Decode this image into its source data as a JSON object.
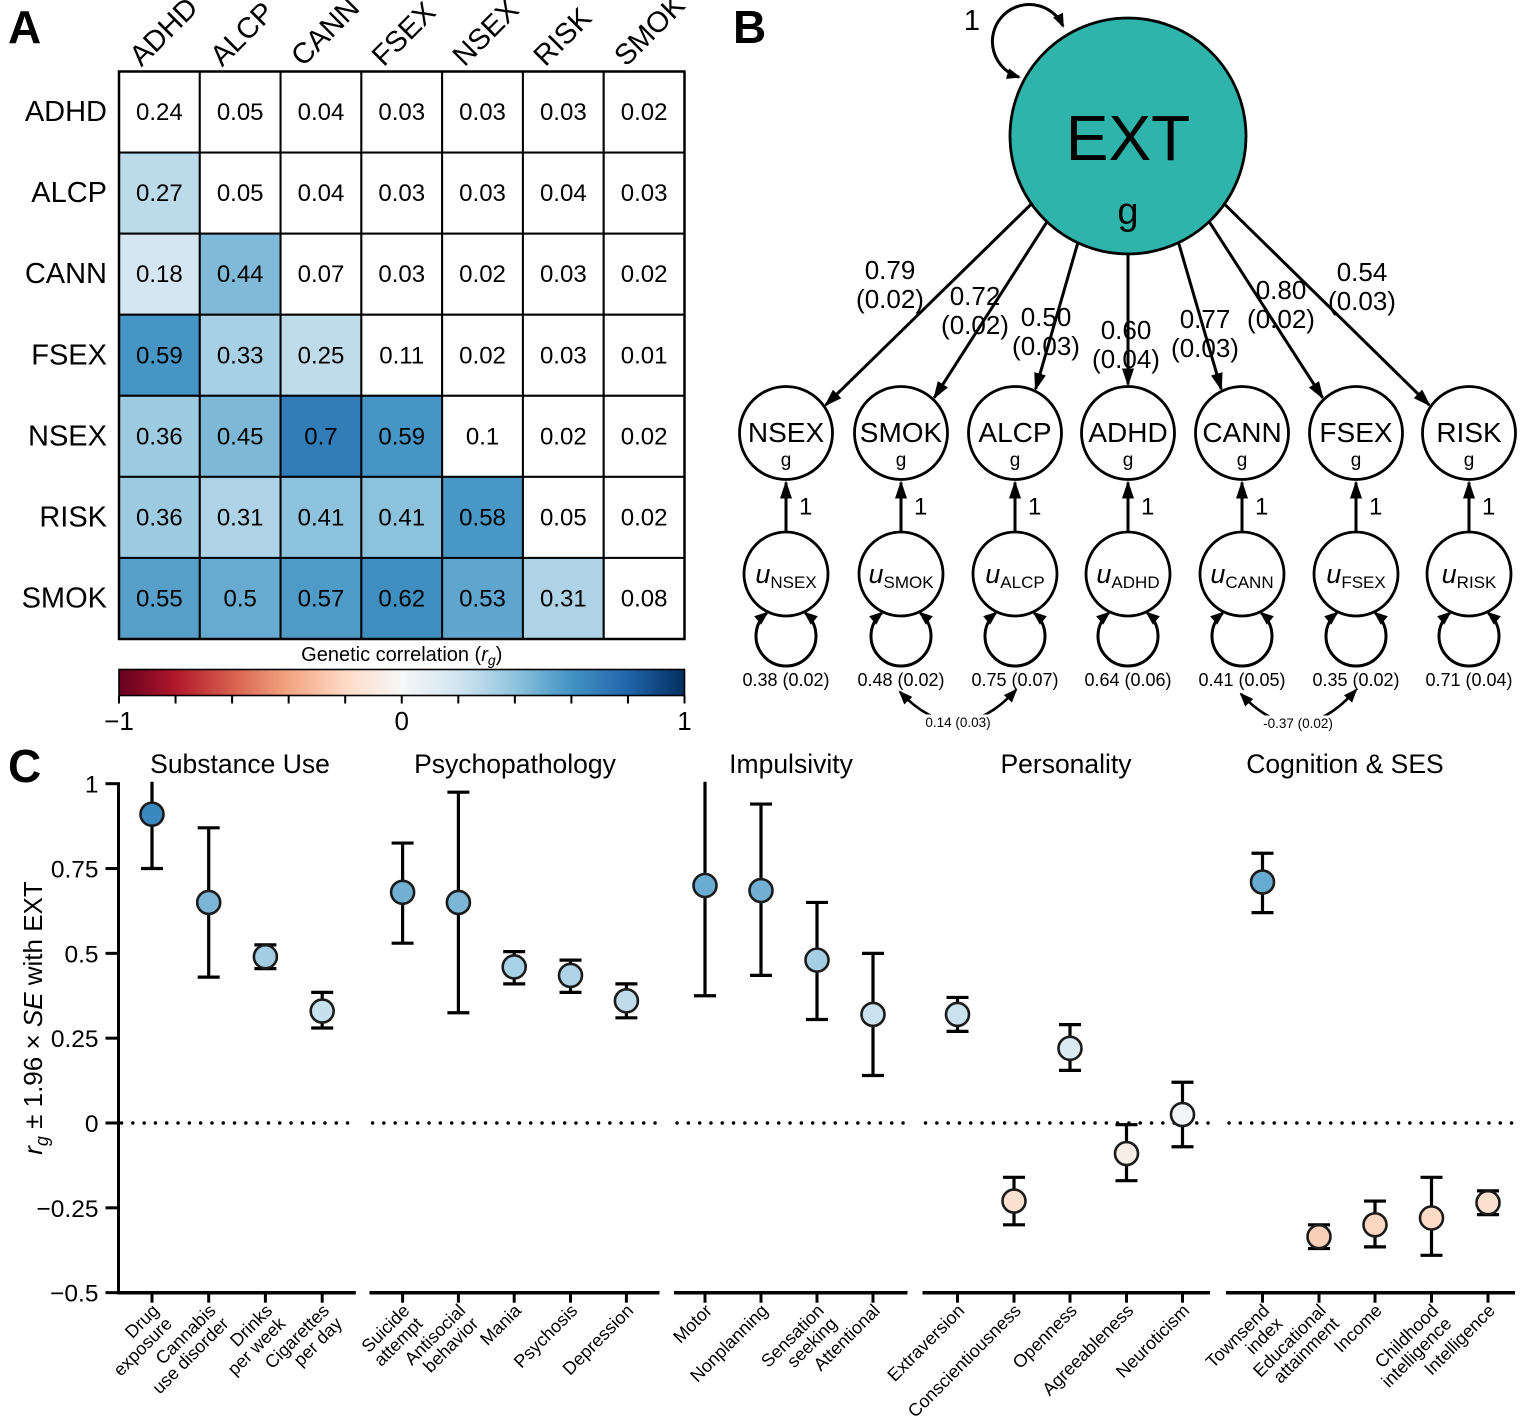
{
  "panels": {
    "a": "A",
    "b": "B",
    "c": "C"
  },
  "colors": {
    "background": "#ffffff",
    "latent_fill": "#2fb4ab",
    "line_stroke": "#000000",
    "point_stroke": "#1b1b1b",
    "colorbar_gradient": [
      "#67001f",
      "#8a0b25",
      "#b1182b",
      "#c43b3c",
      "#d6604d",
      "#e58368",
      "#f3a481",
      "#f8bfa4",
      "#fddbc7",
      "#fae9df",
      "#f6f7f7",
      "#e4eef4",
      "#d1e5f0",
      "#b1d5e7",
      "#90c4dd",
      "#68abd0",
      "#4393c3",
      "#327cb7",
      "#2065ab",
      "#124984",
      "#053061"
    ]
  },
  "chart_data": [
    {
      "id": "panel_a",
      "type": "heatmap",
      "labels": [
        "ADHD",
        "ALCP",
        "CANN",
        "FSEX",
        "NSEX",
        "RISK",
        "SMOK"
      ],
      "matrix": [
        [
          "0.24",
          "0.05",
          "0.04",
          "0.03",
          "0.03",
          "0.03",
          "0.02"
        ],
        [
          "0.27",
          "0.05",
          "0.04",
          "0.03",
          "0.03",
          "0.04",
          "0.03"
        ],
        [
          "0.18",
          "0.44",
          "0.07",
          "0.03",
          "0.02",
          "0.03",
          "0.02"
        ],
        [
          "0.59",
          "0.33",
          "0.25",
          "0.11",
          "0.02",
          "0.03",
          "0.01"
        ],
        [
          "0.36",
          "0.45",
          "0.7",
          "0.59",
          "0.1",
          "0.02",
          "0.02"
        ],
        [
          "0.36",
          "0.31",
          "0.41",
          "0.41",
          "0.58",
          "0.05",
          "0.02"
        ],
        [
          "0.55",
          "0.5",
          "0.57",
          "0.62",
          "0.53",
          "0.31",
          "0.08"
        ]
      ],
      "cell_colors": [
        [
          null,
          null,
          null,
          null,
          null,
          null,
          null
        ],
        [
          "#bbdaea",
          null,
          null,
          null,
          null,
          null,
          null
        ],
        [
          "#d4e6f1",
          "#81bad8",
          null,
          null,
          null,
          null,
          null
        ],
        [
          "#4695c4",
          "#a7d0e4",
          "#c0dceb",
          null,
          null,
          null,
          null
        ],
        [
          "#9dcbe1",
          "#7eb8d7",
          "#327cb7",
          "#4695c4",
          null,
          null,
          null
        ],
        [
          "#9dcbe1",
          "#aed3e6",
          "#8dc2dc",
          "#8dc2dc",
          "#4997c5",
          null,
          null
        ],
        [
          "#569fc9",
          "#68abd0",
          "#4f9bc7",
          "#3f8ec0",
          "#5fa5cd",
          "#aed3e6",
          null
        ]
      ],
      "colorbar": {
        "label_prefix": "Genetic correlation (",
        "label_symbol": "r",
        "label_sub": "g",
        "label_suffix": ")",
        "range": [
          -1,
          1
        ],
        "major_ticks": [
          -1,
          0,
          1
        ],
        "major_tick_labels": [
          "−1",
          "0",
          "1"
        ],
        "minor_tick_step": 0.2
      }
    },
    {
      "id": "panel_b",
      "type": "path_diagram",
      "latent": {
        "label": "EXT",
        "sub": "g",
        "variance_label": "1"
      },
      "indicator_path_label": "1",
      "indicators": [
        {
          "name": "NSEX",
          "sub": "g",
          "loading": "0.79",
          "loading_se": "(0.02)",
          "u_symbol": "u",
          "u_sub": "NSEX",
          "u_variance": "0.38 (0.02)"
        },
        {
          "name": "SMOK",
          "sub": "g",
          "loading": "0.72",
          "loading_se": "(0.02)",
          "u_symbol": "u",
          "u_sub": "SMOK",
          "u_variance": "0.48 (0.02)"
        },
        {
          "name": "ALCP",
          "sub": "g",
          "loading": "0.50",
          "loading_se": "(0.03)",
          "u_symbol": "u",
          "u_sub": "ALCP",
          "u_variance": "0.75 (0.07)"
        },
        {
          "name": "ADHD",
          "sub": "g",
          "loading": "0.60",
          "loading_se": "(0.04)",
          "u_symbol": "u",
          "u_sub": "ADHD",
          "u_variance": "0.64 (0.06)"
        },
        {
          "name": "CANN",
          "sub": "g",
          "loading": "0.77",
          "loading_se": "(0.03)",
          "u_symbol": "u",
          "u_sub": "CANN",
          "u_variance": "0.41 (0.05)"
        },
        {
          "name": "FSEX",
          "sub": "g",
          "loading": "0.80",
          "loading_se": "(0.02)",
          "u_symbol": "u",
          "u_sub": "FSEX",
          "u_variance": "0.35 (0.02)"
        },
        {
          "name": "RISK",
          "sub": "g",
          "loading": "0.54",
          "loading_se": "(0.03)",
          "u_symbol": "u",
          "u_sub": "RISK",
          "u_variance": "0.71 (0.04)"
        }
      ],
      "residual_correlations": [
        {
          "between": [
            "SMOK",
            "ALCP"
          ],
          "label": "0.14 (0.03)"
        },
        {
          "between": [
            "CANN",
            "FSEX"
          ],
          "label": "-0.37 (0.02)"
        }
      ]
    },
    {
      "id": "panel_c",
      "type": "scatter",
      "ylabel": {
        "sym1": "r",
        "sub1": "g",
        "mid": " ± 1.96 × ",
        "sym2": "SE",
        "suffix": " with EXT"
      },
      "ylim": [
        -0.5,
        1
      ],
      "yticks": {
        "values": [
          1,
          0.75,
          0.5,
          0.25,
          0,
          -0.25,
          -0.5
        ],
        "labels": [
          "1",
          "0.75",
          "0.5",
          "0.25",
          "0",
          "−0.25",
          "−0.5"
        ]
      },
      "zero_reference_line": 0,
      "groups": [
        {
          "name": "Substance Use",
          "items": [
            {
              "label": [
                "Drug",
                "exposure"
              ],
              "value": 0.91,
              "lo": 0.75,
              "hi": 1.01,
              "clip_top": true,
              "color": "#3b88be"
            },
            {
              "label": [
                "Cannabis",
                "use disorder"
              ],
              "value": 0.65,
              "lo": 0.43,
              "hi": 0.87,
              "color": "#7bb6d6"
            },
            {
              "label": [
                "Drinks",
                "per week"
              ],
              "value": 0.49,
              "lo": 0.455,
              "hi": 0.525,
              "color": "#a2cde3"
            },
            {
              "label": [
                "Cigarettes",
                "per day"
              ],
              "value": 0.33,
              "lo": 0.28,
              "hi": 0.385,
              "color": "#c7e0ed"
            }
          ]
        },
        {
          "name": "Psychopathology",
          "items": [
            {
              "label": [
                "Suicide",
                "attempt"
              ],
              "value": 0.68,
              "lo": 0.53,
              "hi": 0.825,
              "color": "#71b0d3"
            },
            {
              "label": [
                "Antisocial",
                "behavior"
              ],
              "value": 0.65,
              "lo": 0.325,
              "hi": 0.975,
              "color": "#7bb6d6"
            },
            {
              "label": [
                "Mania"
              ],
              "value": 0.46,
              "lo": 0.41,
              "hi": 0.505,
              "color": "#a9d1e5"
            },
            {
              "label": [
                "Psychosis"
              ],
              "value": 0.435,
              "lo": 0.385,
              "hi": 0.48,
              "color": "#aed3e6"
            },
            {
              "label": [
                "Depression"
              ],
              "value": 0.36,
              "lo": 0.31,
              "hi": 0.41,
              "color": "#c0dceb"
            }
          ]
        },
        {
          "name": "Impulsivity",
          "items": [
            {
              "label": [
                "Motor"
              ],
              "value": 0.7,
              "lo": 0.375,
              "hi": 1.01,
              "clip_top": true,
              "color": "#6bacd1"
            },
            {
              "label": [
                "Nonplanning"
              ],
              "value": 0.685,
              "lo": 0.435,
              "hi": 0.94,
              "color": "#71b0d3"
            },
            {
              "label": [
                "Sensation",
                "seeking"
              ],
              "value": 0.48,
              "lo": 0.305,
              "hi": 0.65,
              "color": "#a5cee3"
            },
            {
              "label": [
                "Attentional"
              ],
              "value": 0.32,
              "lo": 0.14,
              "hi": 0.5,
              "color": "#cae1ee"
            }
          ]
        },
        {
          "name": "Personality",
          "items": [
            {
              "label": [
                "Extraversion"
              ],
              "value": 0.32,
              "lo": 0.27,
              "hi": 0.37,
              "color": "#cae1ee"
            },
            {
              "label": [
                "Conscientiousness"
              ],
              "value": -0.23,
              "lo": -0.3,
              "hi": -0.16,
              "color": "#fce0d0"
            },
            {
              "label": [
                "Openness"
              ],
              "value": 0.22,
              "lo": 0.155,
              "hi": 0.29,
              "color": "#dae9f2"
            },
            {
              "label": [
                "Agreeableness"
              ],
              "value": -0.09,
              "lo": -0.17,
              "hi": -0.005,
              "color": "#f9eee7"
            },
            {
              "label": [
                "Neuroticism"
              ],
              "value": 0.025,
              "lo": -0.07,
              "hi": 0.12,
              "color": "#f3f5f6"
            }
          ]
        },
        {
          "name": "Cognition & SES",
          "items": [
            {
              "label": [
                "Townsend",
                "index"
              ],
              "value": 0.71,
              "lo": 0.62,
              "hi": 0.795,
              "color": "#68abd0"
            },
            {
              "label": [
                "Educational",
                "attainment"
              ],
              "value": -0.335,
              "lo": -0.37,
              "hi": -0.3,
              "color": "#fbd0b9"
            },
            {
              "label": [
                "Income"
              ],
              "value": -0.3,
              "lo": -0.365,
              "hi": -0.23,
              "color": "#fcd7c2"
            },
            {
              "label": [
                "Childhood",
                "intelligence"
              ],
              "value": -0.28,
              "lo": -0.39,
              "hi": -0.16,
              "color": "#fddbc7"
            },
            {
              "label": [
                "Intelligence"
              ],
              "value": -0.235,
              "lo": -0.27,
              "hi": -0.2,
              "color": "#fcdfcf"
            }
          ]
        }
      ]
    }
  ]
}
